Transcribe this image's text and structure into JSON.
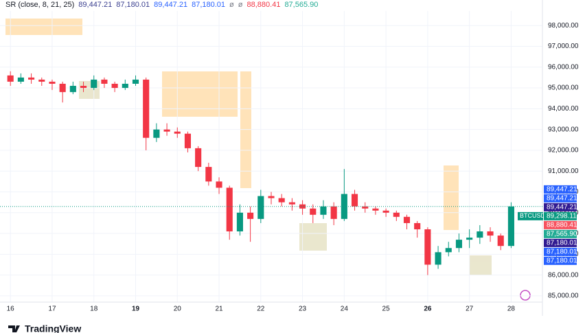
{
  "chart_data": {
    "type": "candlestick",
    "symbol": "BTCUSD",
    "indicator": {
      "name": "SR (close, 8, 21, 25)",
      "values": [
        {
          "value": 89447.21,
          "label": "89,447.21",
          "color": "#3a3f8f"
        },
        {
          "value": 87180.01,
          "label": "87,180.01",
          "color": "#3a3f8f"
        },
        {
          "value": 89447.21,
          "label": "89,447.21",
          "color": "#2962ff"
        },
        {
          "value": 87180.01,
          "label": "87,180.01",
          "color": "#2962ff"
        },
        {
          "value": null,
          "label": "ø",
          "color": "#787b86"
        },
        {
          "value": null,
          "label": "ø",
          "color": "#787b86"
        },
        {
          "value": 88880.41,
          "label": "88,880.41",
          "color": "#f23645"
        },
        {
          "value": 87565.9,
          "label": "87,565.90",
          "color": "#22ab94"
        }
      ]
    },
    "x": [
      16,
      16.25,
      16.5,
      16.75,
      17,
      17.25,
      17.5,
      17.75,
      18,
      18.25,
      18.5,
      18.75,
      19,
      19.25,
      19.5,
      19.75,
      20,
      20.25,
      20.5,
      20.75,
      21,
      21.25,
      21.5,
      21.75,
      22,
      22.25,
      22.5,
      22.75,
      23,
      23.25,
      23.5,
      23.75,
      24,
      24.25,
      24.5,
      24.75,
      25,
      25.25,
      25.5,
      25.75,
      26,
      26.25,
      26.5,
      26.75,
      27,
      27.25,
      27.5,
      27.75,
      28
    ],
    "open": [
      95600,
      95300,
      95500,
      95400,
      95300,
      95200,
      94800,
      95100,
      95000,
      95400,
      95200,
      95000,
      95200,
      95400,
      92600,
      93000,
      92900,
      92800,
      92100,
      91200,
      90500,
      90200,
      88100,
      89000,
      88700,
      89800,
      89700,
      89500,
      89400,
      89200,
      88900,
      89300,
      88700,
      89900,
      89300,
      89200,
      89100,
      89000,
      88800,
      88500,
      88200,
      86500,
      87100,
      87300,
      87700,
      87800,
      88100,
      87900,
      87400
    ],
    "high": [
      95800,
      95700,
      95700,
      95500,
      95400,
      95300,
      95300,
      95300,
      95600,
      95500,
      95300,
      95400,
      95600,
      95500,
      93300,
      93300,
      93100,
      92900,
      92200,
      91400,
      90700,
      90300,
      89400,
      89300,
      90100,
      90000,
      89900,
      89700,
      89600,
      89400,
      89600,
      89500,
      91100,
      90100,
      89500,
      89300,
      89200,
      89100,
      88900,
      88600,
      88300,
      87400,
      87600,
      88000,
      88200,
      88400,
      88300,
      88000,
      89500
    ],
    "low": [
      95100,
      95200,
      95200,
      95100,
      94900,
      94300,
      94700,
      94800,
      94900,
      95000,
      94800,
      94900,
      95100,
      92000,
      92400,
      92700,
      92600,
      91900,
      91000,
      90300,
      89900,
      87700,
      87900,
      87600,
      88500,
      89400,
      89300,
      89100,
      88900,
      88500,
      88700,
      88400,
      88600,
      89100,
      89000,
      88900,
      88800,
      88600,
      88200,
      87800,
      86000,
      86300,
      86900,
      87100,
      87300,
      87500,
      87600,
      87200,
      87300
    ],
    "close": [
      95300,
      95500,
      95400,
      95300,
      95200,
      94800,
      95100,
      95000,
      95400,
      95200,
      95000,
      95200,
      95400,
      92600,
      93000,
      92900,
      92800,
      92100,
      91200,
      90500,
      90200,
      88100,
      89000,
      88700,
      89800,
      89700,
      89500,
      89400,
      89200,
      88900,
      89300,
      88700,
      89900,
      89300,
      89200,
      89100,
      89000,
      88800,
      88500,
      88200,
      86500,
      87100,
      87300,
      87700,
      87800,
      88100,
      87900,
      87400,
      89300
    ],
    "up_color": "#089981",
    "down_color": "#f23645",
    "xlim": [
      15.75,
      28.75
    ],
    "xticks": [
      16,
      17,
      18,
      {
        "value": 19,
        "label": "19"
      },
      20,
      21,
      22,
      23,
      24,
      25,
      {
        "value": 26,
        "label": "26"
      },
      27,
      28
    ],
    "ylim": [
      84700,
      98700
    ],
    "yticks": [
      {
        "value": 85000,
        "label": "85,000.00"
      },
      {
        "value": 86000,
        "label": "86,000.00"
      },
      {
        "value": 87000,
        "label": "87,000.00"
      },
      {
        "value": 88000,
        "label": "88,000.00"
      },
      {
        "value": 89000,
        "label": "89,000.00"
      },
      {
        "value": 90000,
        "label": "90,000.00"
      },
      {
        "value": 91000,
        "label": "91,000.00"
      },
      {
        "value": 92000,
        "label": "92,000.00"
      },
      {
        "value": 93000,
        "label": "93,000.00"
      },
      {
        "value": 94000,
        "label": "94,000.00"
      },
      {
        "value": 95000,
        "label": "95,000.00"
      },
      {
        "value": 96000,
        "label": "96,000.00"
      },
      {
        "value": 97000,
        "label": "97,000.00"
      },
      {
        "value": 98000,
        "label": "98,000.00"
      }
    ],
    "last_price": {
      "value": 89298.11,
      "label": "89,298.11",
      "color": "#089981"
    },
    "price_tags": [
      {
        "value": 89447.21,
        "label": "89,447.21",
        "color": "#2962ff"
      },
      {
        "value": 89447.21,
        "label": "89,447.21",
        "color": "#2962ff"
      },
      {
        "value": 89447.21,
        "label": "89,447.21",
        "color": "#311b92"
      },
      {
        "value": 88880.41,
        "label": "88,880.41",
        "color": "#f7525f"
      },
      {
        "value": 87565.9,
        "label": "87,565.90",
        "color": "#22ab94"
      },
      {
        "value": 87180.01,
        "label": "87,180.01",
        "color": "#311b92"
      },
      {
        "value": 87180.01,
        "label": "87,180.01",
        "color": "#2962ff"
      },
      {
        "value": 87180.01,
        "label": "87,180.01",
        "color": "#2962ff"
      }
    ],
    "brand": "TradingView"
  }
}
